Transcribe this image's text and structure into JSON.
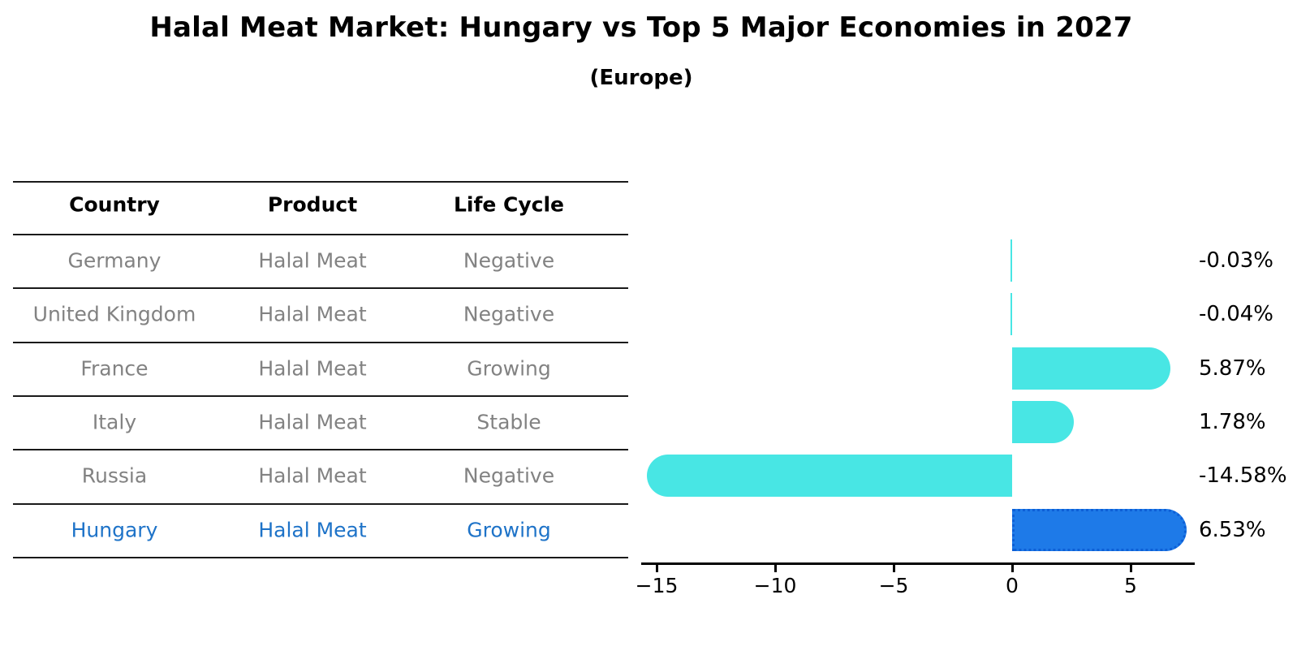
{
  "title": "Halal Meat Market: Hungary vs Top 5 Major Economies in 2027",
  "subtitle": "(Europe)",
  "table": {
    "headers": [
      "Country",
      "Product",
      "Life Cycle"
    ],
    "rows": [
      {
        "country": "Germany",
        "product": "Halal Meat",
        "life_cycle": "Negative",
        "highlighted": false
      },
      {
        "country": "United Kingdom",
        "product": "Halal Meat",
        "life_cycle": "Negative",
        "highlighted": false
      },
      {
        "country": "France",
        "product": "Halal Meat",
        "life_cycle": "Growing",
        "highlighted": false
      },
      {
        "country": "Italy",
        "product": "Halal Meat",
        "life_cycle": "Stable",
        "highlighted": false
      },
      {
        "country": "Russia",
        "product": "Halal Meat",
        "life_cycle": "Negative",
        "highlighted": false
      },
      {
        "country": "Hungary",
        "product": "Halal Meat",
        "life_cycle": "Growing",
        "highlighted": true
      }
    ]
  },
  "chart_data": {
    "type": "bar",
    "orientation": "horizontal",
    "title": "Halal Meat Market: Hungary vs Top 5 Major Economies in 2027",
    "subtitle": "(Europe)",
    "categories": [
      "Germany",
      "United Kingdom",
      "France",
      "Italy",
      "Russia",
      "Hungary"
    ],
    "values": [
      -0.03,
      -0.04,
      5.87,
      1.78,
      -14.58,
      6.53
    ],
    "value_labels": [
      "-0.03%",
      "-0.04%",
      "5.87%",
      "1.78%",
      "-14.58%",
      "6.53%"
    ],
    "xticks": [
      -15,
      -10,
      -5,
      0,
      5
    ],
    "xtick_labels": [
      "−15",
      "−10",
      "−5",
      "0",
      "5"
    ],
    "xlim": [
      -15.7,
      7.7
    ],
    "grid": false,
    "legend": "none",
    "highlight_index": 5
  },
  "colors": {
    "bar_cyan": "#48E6E4",
    "bar_blue": "#1E7AE8",
    "bar_blue_border": "#0D5FD6",
    "highlight_text": "#1E73C8",
    "row_text_gray": "#828282",
    "line_black": "#1a1a1a"
  }
}
